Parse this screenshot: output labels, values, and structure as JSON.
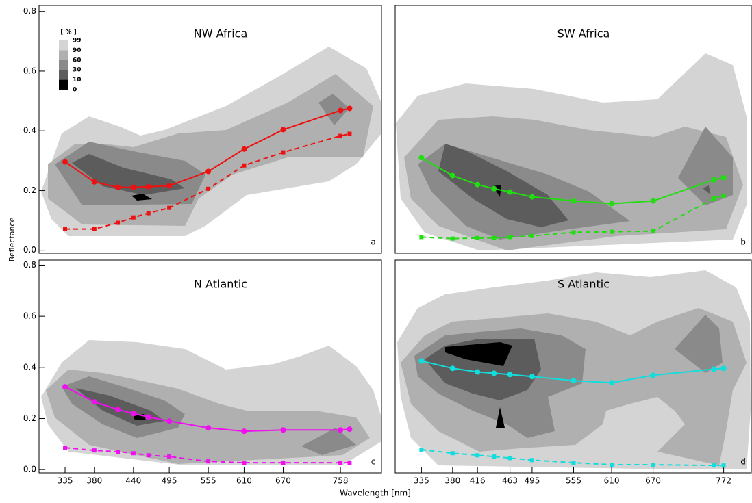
{
  "figure": {
    "xlabel": "Wavelength [nm]",
    "ylabel": "Reflectance",
    "legend": {
      "title": "[ % ]",
      "levels": [
        "99",
        "90",
        "60",
        "30",
        "10",
        "0"
      ],
      "colors": [
        "#d4d4d4",
        "#b0b0b0",
        "#8a8a8a",
        "#5c5c5c",
        "#000000"
      ]
    }
  },
  "chart_data": [
    {
      "type": "line",
      "title": "NW Africa",
      "annotation": "a",
      "x": [
        335,
        380,
        416,
        440,
        463,
        495,
        555,
        610,
        670,
        758,
        772
      ],
      "series": [
        {
          "color": "#ee1111",
          "style": "solid",
          "marker": "circle",
          "values": [
            0.296,
            0.229,
            0.211,
            0.211,
            0.213,
            0.216,
            0.264,
            0.339,
            0.404,
            0.468,
            0.475
          ]
        },
        {
          "color": "#ee1111",
          "style": "dashed",
          "marker": "square",
          "values": [
            0.071,
            0.071,
            0.092,
            0.11,
            0.124,
            0.142,
            0.206,
            0.284,
            0.328,
            0.383,
            0.39
          ]
        }
      ],
      "xlim": [
        295,
        821
      ],
      "ylim": [
        -0.01,
        0.82
      ],
      "yticks": [
        {
          "value": 0,
          "label": "0.0"
        },
        0.2,
        0.4,
        0.6,
        0.8
      ]
    },
    {
      "type": "line",
      "title": "SW Africa",
      "annotation": "b",
      "x": [
        335,
        380,
        416,
        440,
        463,
        495,
        555,
        610,
        670,
        758,
        772
      ],
      "series": [
        {
          "color": "#22dd11",
          "style": "solid",
          "marker": "circle",
          "values": [
            0.31,
            0.25,
            0.22,
            0.206,
            0.195,
            0.179,
            0.165,
            0.156,
            0.165,
            0.236,
            0.243
          ]
        },
        {
          "color": "#22dd11",
          "style": "dashed",
          "marker": "square",
          "values": [
            0.044,
            0.039,
            0.041,
            0.041,
            0.044,
            0.048,
            0.06,
            0.062,
            0.064,
            0.174,
            0.183
          ]
        }
      ],
      "xlim": [
        297,
        812
      ],
      "ylim": [
        -0.01,
        0.82
      ]
    },
    {
      "type": "line",
      "title": "N Atlantic",
      "annotation": "c",
      "x": [
        335,
        380,
        416,
        440,
        463,
        495,
        555,
        610,
        670,
        758,
        772
      ],
      "series": [
        {
          "color": "#ee11ee",
          "style": "solid",
          "marker": "circle",
          "values": [
            0.324,
            0.265,
            0.235,
            0.219,
            0.206,
            0.19,
            0.163,
            0.15,
            0.155,
            0.155,
            0.158
          ]
        },
        {
          "color": "#ee11ee",
          "style": "dashed",
          "marker": "square",
          "values": [
            0.086,
            0.075,
            0.07,
            0.064,
            0.056,
            0.051,
            0.032,
            0.027,
            0.027,
            0.027,
            0.027
          ]
        }
      ],
      "xlim": [
        295,
        821
      ],
      "ylim": [
        -0.013,
        0.82
      ],
      "xticks": [
        335,
        380,
        440,
        495,
        555,
        610,
        670,
        758
      ],
      "yticks": [
        {
          "value": 0,
          "label": "0.0"
        },
        0.2,
        0.4,
        0.6,
        0.8
      ]
    },
    {
      "type": "line",
      "title": "S Atlantic",
      "annotation": "d",
      "x": [
        335,
        380,
        416,
        440,
        463,
        495,
        555,
        610,
        670,
        758,
        772
      ],
      "series": [
        {
          "color": "#11dddd",
          "style": "solid",
          "marker": "circle",
          "values": [
            0.425,
            0.396,
            0.382,
            0.377,
            0.372,
            0.364,
            0.348,
            0.34,
            0.369,
            0.393,
            0.396
          ]
        },
        {
          "color": "#11dddd",
          "style": "dashed",
          "marker": "square",
          "values": [
            0.078,
            0.064,
            0.056,
            0.051,
            0.045,
            0.037,
            0.027,
            0.019,
            0.019,
            0.016,
            0.016
          ]
        }
      ],
      "xlim": [
        297,
        812
      ],
      "ylim": [
        -0.013,
        0.82
      ],
      "xticks": [
        335,
        380,
        416,
        463,
        495,
        555,
        610,
        670,
        772
      ]
    }
  ]
}
